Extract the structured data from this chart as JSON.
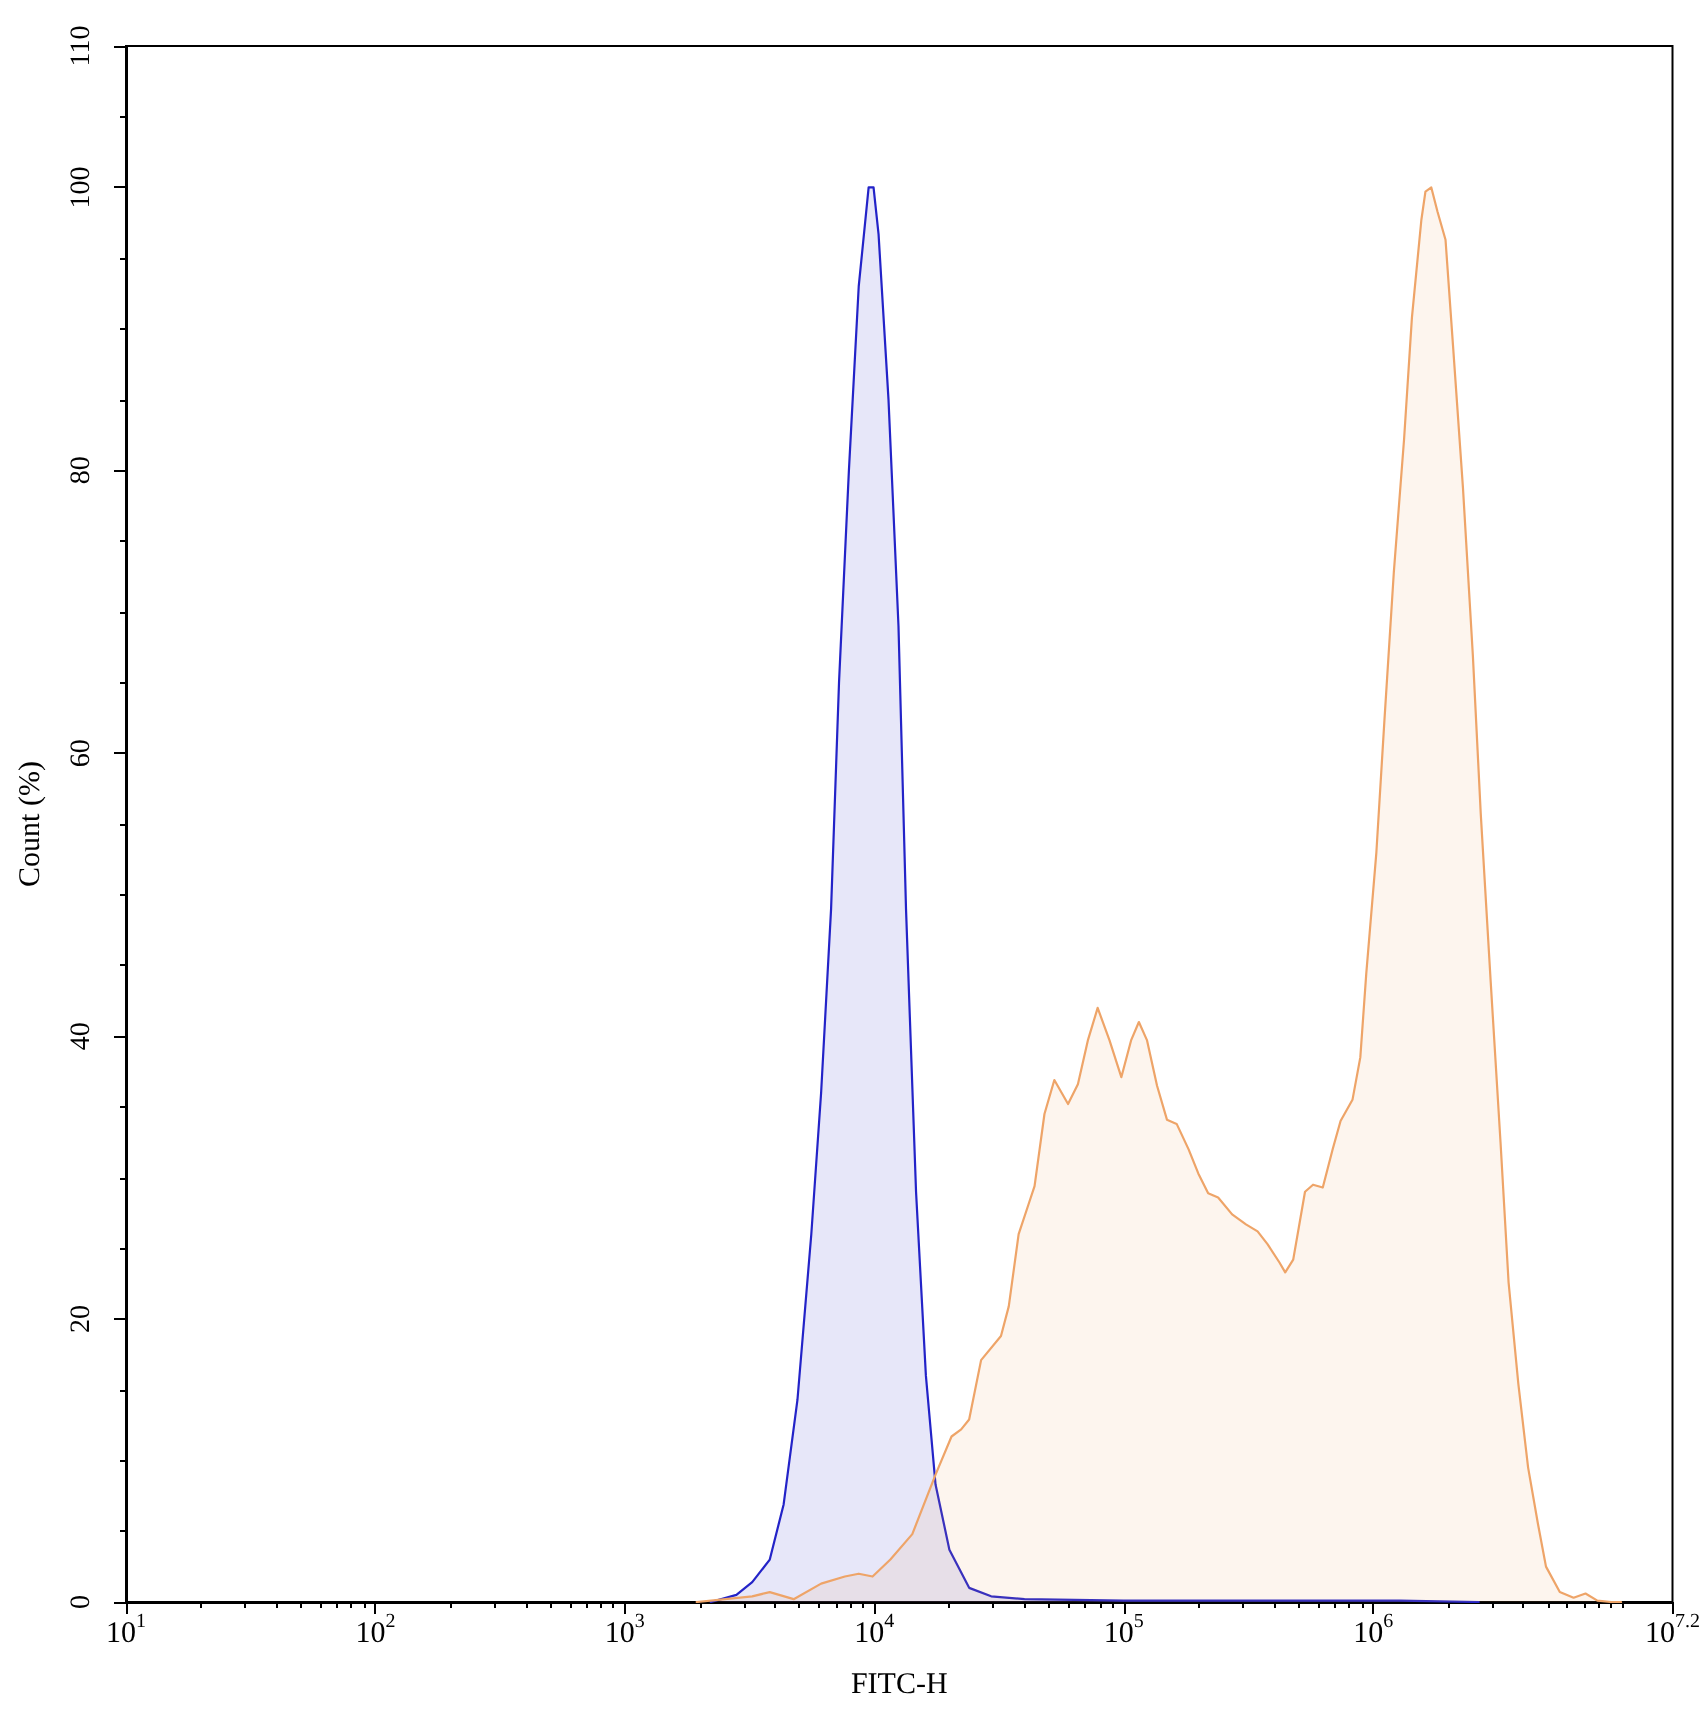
{
  "chart_data": {
    "type": "area",
    "xlabel": "FITC-H",
    "ylabel": "Count (%)",
    "log": "x",
    "grid": false,
    "marker": "none",
    "line_style": "solid",
    "xlim": [
      10,
      15848932
    ],
    "ylim": [
      0,
      110
    ],
    "xticks": [
      {
        "value": 10,
        "label": "10$^{1}$"
      },
      {
        "value": 20,
        "label": null
      },
      {
        "value": 30,
        "label": null
      },
      {
        "value": 40,
        "label": null
      },
      {
        "value": 50,
        "label": null
      },
      {
        "value": 60,
        "label": null
      },
      {
        "value": 70,
        "label": null
      },
      {
        "value": 80,
        "label": null
      },
      {
        "value": 90,
        "label": null
      },
      {
        "value": 100,
        "label": "10$^{2}$"
      },
      {
        "value": 200,
        "label": null
      },
      {
        "value": 300,
        "label": null
      },
      {
        "value": 400,
        "label": null
      },
      {
        "value": 500,
        "label": null
      },
      {
        "value": 600,
        "label": null
      },
      {
        "value": 700,
        "label": null
      },
      {
        "value": 800,
        "label": null
      },
      {
        "value": 900,
        "label": null
      },
      {
        "value": 1000,
        "label": "10$^{3}$"
      },
      {
        "value": 2000,
        "label": null
      },
      {
        "value": 3000,
        "label": null
      },
      {
        "value": 4000,
        "label": null
      },
      {
        "value": 5000,
        "label": null
      },
      {
        "value": 6000,
        "label": null
      },
      {
        "value": 7000,
        "label": null
      },
      {
        "value": 8000,
        "label": null
      },
      {
        "value": 9000,
        "label": null
      },
      {
        "value": 10000,
        "label": "10$^{4}$"
      },
      {
        "value": 20000,
        "label": null
      },
      {
        "value": 30000,
        "label": null
      },
      {
        "value": 40000,
        "label": null
      },
      {
        "value": 50000,
        "label": null
      },
      {
        "value": 60000,
        "label": null
      },
      {
        "value": 70000,
        "label": null
      },
      {
        "value": 80000,
        "label": null
      },
      {
        "value": 90000,
        "label": null
      },
      {
        "value": 100000,
        "label": "10$^{5}$"
      },
      {
        "value": 200000,
        "label": null
      },
      {
        "value": 300000,
        "label": null
      },
      {
        "value": 400000,
        "label": null
      },
      {
        "value": 500000,
        "label": null
      },
      {
        "value": 600000,
        "label": null
      },
      {
        "value": 700000,
        "label": null
      },
      {
        "value": 800000,
        "label": null
      },
      {
        "value": 900000,
        "label": null
      },
      {
        "value": 1000000,
        "label": "10$^{6}$"
      },
      {
        "value": 2000000,
        "label": null
      },
      {
        "value": 3000000,
        "label": null
      },
      {
        "value": 4000000,
        "label": null
      },
      {
        "value": 5000000,
        "label": null
      },
      {
        "value": 6000000,
        "label": null
      },
      {
        "value": 7000000,
        "label": null
      },
      {
        "value": 8000000,
        "label": null
      },
      {
        "value": 9000000,
        "label": null
      },
      {
        "value": 10000000,
        "label": null
      },
      {
        "value": 15848932,
        "label": "10$^{7.2}$"
      }
    ],
    "yticks": [
      0,
      {
        "value": 5,
        "label": null
      },
      {
        "value": 10,
        "label": null
      },
      {
        "value": 15,
        "label": null
      },
      20,
      {
        "value": 25,
        "label": null
      },
      {
        "value": 30,
        "label": null
      },
      {
        "value": 35,
        "label": null
      },
      40,
      {
        "value": 45,
        "label": null
      },
      {
        "value": 50,
        "label": null
      },
      {
        "value": 55,
        "label": null
      },
      60,
      {
        "value": 65,
        "label": null
      },
      {
        "value": 70,
        "label": null
      },
      {
        "value": 75,
        "label": null
      },
      80,
      {
        "value": 85,
        "label": null
      },
      {
        "value": 90,
        "label": null
      },
      {
        "value": 95,
        "label": null
      },
      100,
      {
        "value": 105,
        "label": null
      },
      110
    ],
    "series": [
      {
        "color": "#2323c8",
        "x": [
          2210,
          2800,
          3240,
          3810,
          4330,
          4920,
          5590,
          6120,
          6710,
          7220,
          7910,
          8660,
          9490,
          9930,
          10400,
          11400,
          12500,
          13400,
          14700,
          16100,
          17600,
          20000,
          24000,
          29400,
          40000,
          100000,
          207000,
          514000,
          1280000,
          2650000
        ],
        "values": [
          0,
          0.5,
          1.4,
          3.0,
          6.9,
          14.3,
          26,
          36,
          49,
          65,
          80,
          93,
          100,
          100,
          96.7,
          85,
          69,
          49,
          29,
          16,
          8.3,
          3.7,
          1.0,
          0.4,
          0.2,
          0.1,
          0.1,
          0.1,
          0.1,
          0
        ]
      },
      {
        "color": "#eea468",
        "x": [
          1940,
          3240,
          3810,
          4750,
          6120,
          7620,
          8660,
          9840,
          11600,
          14200,
          17600,
          20400,
          22300,
          24000,
          26800,
          32200,
          34600,
          37900,
          41500,
          43900,
          48100,
          52700,
          59800,
          65500,
          71800,
          78600,
          87700,
          97800,
          107000,
          115000,
          124000,
          136000,
          149000,
          163000,
          182000,
          199000,
          218000,
          239000,
          272000,
          309000,
          344000,
          377000,
          421000,
          444000,
          478000,
          533000,
          574000,
          628000,
          688000,
          740000,
          826000,
          888000,
          938000,
          1030000,
          1110000,
          1210000,
          1330000,
          1430000,
          1560000,
          1620000,
          1710000,
          1810000,
          1950000,
          2090000,
          2290000,
          2510000,
          2700000,
          2960000,
          3240000,
          3490000,
          3820000,
          4180000,
          4580000,
          4930000,
          5600000,
          6360000,
          7100000,
          7920000,
          9000000,
          9860000
        ],
        "values": [
          0,
          0.4,
          0.7,
          0.2,
          1.3,
          1.8,
          2.0,
          1.8,
          3.0,
          4.8,
          9.0,
          11.7,
          12.2,
          12.9,
          17.1,
          18.8,
          20.9,
          26.0,
          28.1,
          29.4,
          34.5,
          36.9,
          35.2,
          36.6,
          39.7,
          42.0,
          39.7,
          37.1,
          39.7,
          41.0,
          39.7,
          36.5,
          34.1,
          33.8,
          32.0,
          30.3,
          28.9,
          28.6,
          27.4,
          26.7,
          26.2,
          25.3,
          24.0,
          23.3,
          24.2,
          29.0,
          29.5,
          29.3,
          32.0,
          34.0,
          35.5,
          38.5,
          44.4,
          53.0,
          62.4,
          72.8,
          82.2,
          90.8,
          97.7,
          99.7,
          100,
          98.3,
          96.3,
          88.8,
          78.8,
          66.9,
          55.7,
          43.8,
          32.5,
          22.6,
          15.4,
          9.5,
          5.5,
          2.5,
          0.7,
          0.3,
          0.6,
          0.1,
          0,
          0
        ]
      }
    ]
  }
}
